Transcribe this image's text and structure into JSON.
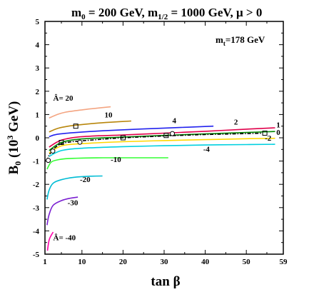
{
  "chart_data": {
    "type": "line",
    "title": "m₀ = 200 GeV, m₁₂ = 1000 GeV, μ > 0",
    "title_parts": {
      "m0": "m",
      "m0_sub": "0",
      "m0_val": " = 200 GeV, ",
      "mhalf": "m",
      "mhalf_sub": "1/2",
      "mhalf_val": " = 1000 GeV, μ > 0"
    },
    "xlabel": "tan β",
    "ylabel_main": "B",
    "ylabel_sub": "0",
    "ylabel_rest": " (10",
    "ylabel_sup": "3",
    "ylabel_end": " GeV)",
    "annotation": {
      "prefix": "m",
      "sub": "t",
      "rest": "=178 GeV"
    },
    "xlim": [
      1,
      59
    ],
    "ylim": [
      -5,
      5
    ],
    "xticks": [
      1,
      10,
      20,
      30,
      40,
      50,
      59
    ],
    "yticks": [
      -5,
      -4,
      -3,
      -2,
      -1,
      0,
      1,
      2,
      3,
      4,
      5
    ],
    "grid": false,
    "series": [
      {
        "name": "Â= 20",
        "color": "#f4a582",
        "x": [
          2,
          4,
          6,
          10,
          14,
          17
        ],
        "y": [
          0.85,
          1.0,
          1.1,
          1.2,
          1.28,
          1.33
        ]
      },
      {
        "name": "10",
        "color": "#b8860b",
        "x": [
          2,
          4,
          6,
          9,
          13,
          17,
          22
        ],
        "y": [
          0.25,
          0.4,
          0.48,
          0.55,
          0.62,
          0.67,
          0.72
        ]
      },
      {
        "name": "4",
        "color": "#2222ee",
        "x": [
          2,
          4,
          8,
          15,
          25,
          35,
          42
        ],
        "y": [
          0.05,
          0.15,
          0.22,
          0.3,
          0.38,
          0.45,
          0.5
        ]
      },
      {
        "name": "2",
        "color": "#e0004a",
        "x": [
          2,
          5,
          10,
          20,
          30,
          40,
          50,
          57
        ],
        "y": [
          -0.4,
          -0.1,
          0.05,
          0.12,
          0.2,
          0.28,
          0.37,
          0.43
        ]
      },
      {
        "name": "1",
        "color": "#008800",
        "x": [
          2,
          5,
          10,
          20,
          30,
          40,
          50,
          57
        ],
        "y": [
          -0.55,
          -0.2,
          -0.05,
          0.03,
          0.1,
          0.17,
          0.23,
          0.27
        ]
      },
      {
        "name": "0",
        "color": "#000000",
        "dash": "5,2,1.5,2",
        "x": [
          1.5,
          2,
          3,
          4,
          5,
          7,
          10,
          15,
          20,
          25,
          30,
          35,
          40,
          45,
          50,
          54
        ],
        "y": [
          -1.0,
          -0.75,
          -0.5,
          -0.35,
          -0.25,
          -0.18,
          -0.13,
          -0.06,
          0.0,
          0.04,
          0.08,
          0.11,
          0.14,
          0.16,
          0.18,
          0.2
        ]
      },
      {
        "name": "-2",
        "color": "#ffd700",
        "x": [
          2,
          5,
          10,
          20,
          30,
          40,
          50,
          57
        ],
        "y": [
          -0.65,
          -0.35,
          -0.25,
          -0.17,
          -0.12,
          -0.08,
          -0.04,
          -0.02
        ]
      },
      {
        "name": "-4",
        "color": "#00d0e0",
        "x": [
          2,
          5,
          10,
          20,
          30,
          40,
          50,
          57
        ],
        "y": [
          -0.8,
          -0.55,
          -0.45,
          -0.38,
          -0.34,
          -0.31,
          -0.29,
          -0.28
        ]
      },
      {
        "name": "-10",
        "color": "#33ff33",
        "x": [
          1.5,
          2.5,
          4,
          6,
          10,
          15,
          20,
          31
        ],
        "y": [
          -1.35,
          -1.05,
          -0.95,
          -0.9,
          -0.87,
          -0.86,
          -0.86,
          -0.86
        ]
      },
      {
        "name": "-20",
        "color": "#00bcd4",
        "x": [
          1.5,
          2,
          3,
          5,
          8,
          12,
          15
        ],
        "y": [
          -2.65,
          -2.25,
          -1.95,
          -1.8,
          -1.7,
          -1.65,
          -1.64
        ]
      },
      {
        "name": "-30",
        "color": "#7a1fd1",
        "x": [
          1.5,
          2,
          3,
          5,
          7,
          9
        ],
        "y": [
          -3.75,
          -3.3,
          -2.9,
          -2.7,
          -2.6,
          -2.55
        ]
      },
      {
        "name": "Â= -40",
        "color": "#ff00aa",
        "x": [
          1.6,
          2,
          2.5,
          3
        ],
        "y": [
          -4.85,
          -4.4,
          -4.2,
          -4.05
        ]
      }
    ],
    "labels": [
      {
        "text": "Â= 20",
        "x": 3.0,
        "y": 1.6
      },
      {
        "text": "10",
        "x": 15.5,
        "y": 0.88
      },
      {
        "text": "4",
        "x": 32,
        "y": 0.63
      },
      {
        "text": "2",
        "x": 47,
        "y": 0.57
      },
      {
        "text": "1",
        "x": 57.3,
        "y": 0.45
      },
      {
        "text": "0",
        "x": 57.3,
        "y": 0.12
      },
      {
        "text": "-2",
        "x": 54.5,
        "y": -0.12
      },
      {
        "text": "-4",
        "x": 39.5,
        "y": -0.6
      },
      {
        "text": "-10",
        "x": 17,
        "y": -1.05
      },
      {
        "text": "-20",
        "x": 9.5,
        "y": -1.9
      },
      {
        "text": "-30",
        "x": 6.5,
        "y": -2.9
      },
      {
        "text": "Â= -40",
        "x": 3.0,
        "y": -4.4
      }
    ],
    "markers": {
      "squares": [
        {
          "x": 8.5,
          "y": 0.5
        },
        {
          "x": 5,
          "y": -0.2
        },
        {
          "x": 20,
          "y": 0.0
        },
        {
          "x": 30.5,
          "y": 0.1
        },
        {
          "x": 54.5,
          "y": 0.2
        }
      ],
      "circles": [
        {
          "x": 1.8,
          "y": -0.97
        },
        {
          "x": 2.9,
          "y": -0.57
        },
        {
          "x": 9.5,
          "y": -0.19
        },
        {
          "x": 32,
          "y": 0.18
        }
      ]
    }
  }
}
